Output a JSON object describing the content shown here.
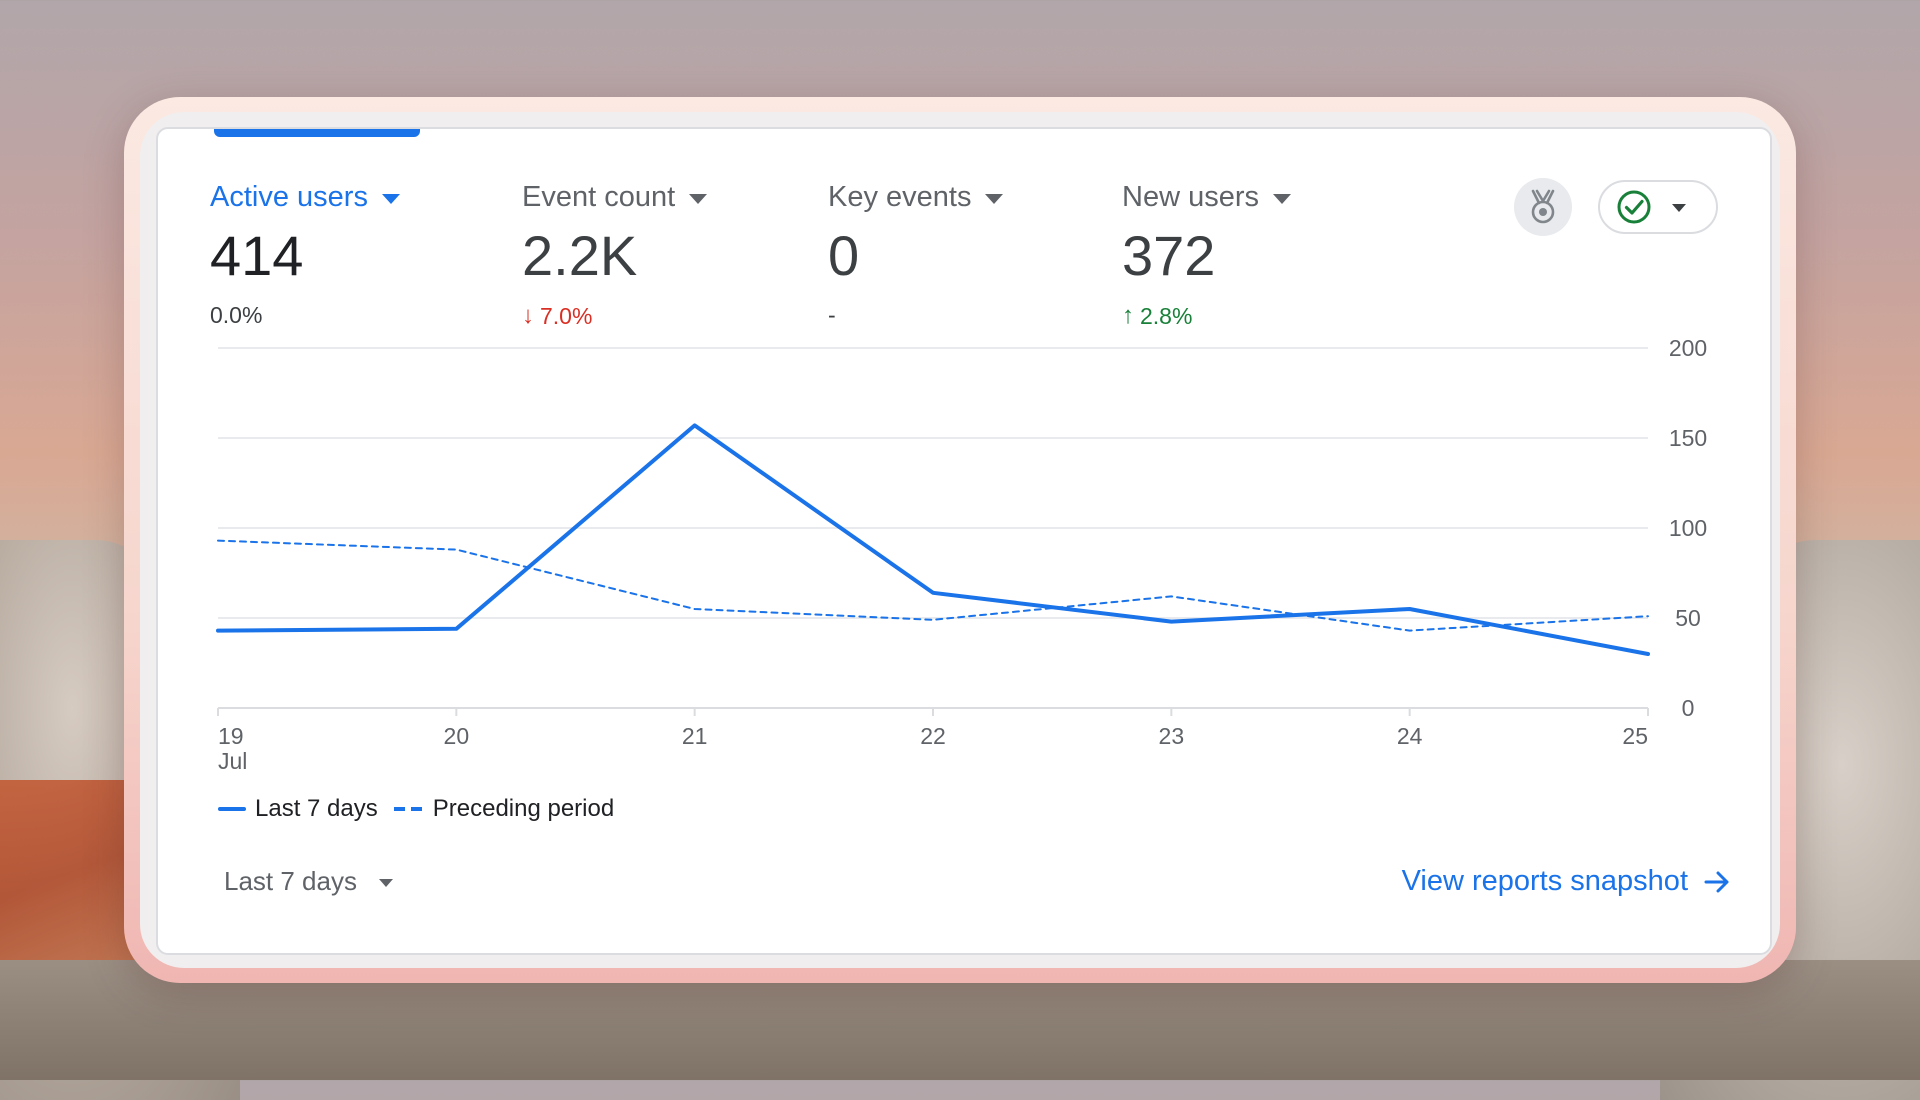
{
  "metrics": [
    {
      "label": "Active users",
      "value": "414",
      "change": "0.0%",
      "direction": "neutral",
      "active": true
    },
    {
      "label": "Event count",
      "value": "2.2K",
      "change": "7.0%",
      "direction": "down",
      "active": false
    },
    {
      "label": "Key events",
      "value": "0",
      "change": "-",
      "direction": "none",
      "active": false
    },
    {
      "label": "New users",
      "value": "372",
      "change": "2.8%",
      "direction": "up",
      "active": false
    }
  ],
  "icons": {
    "insights": "medal-icon",
    "status": "check-circle-icon",
    "dropdown": "chevron-down-icon",
    "link": "arrow-right-icon"
  },
  "colors": {
    "accent": "#1a73e8",
    "negative": "#d93025",
    "positive": "#188038",
    "status_check": "#188038"
  },
  "chart_data": {
    "type": "line",
    "x": [
      "19",
      "20",
      "21",
      "22",
      "23",
      "24",
      "25"
    ],
    "x_sublabel": "Jul",
    "ylim": [
      0,
      200
    ],
    "y_ticks": [
      0,
      50,
      100,
      150,
      200
    ],
    "y_axis_side": "right",
    "grid": true,
    "series": [
      {
        "name": "Last 7 days",
        "style": "solid",
        "values": [
          43,
          44,
          157,
          64,
          48,
          55,
          30
        ]
      },
      {
        "name": "Preceding period",
        "style": "dashed",
        "values": [
          93,
          88,
          55,
          49,
          62,
          43,
          51
        ]
      }
    ],
    "legend_position": "bottom-left"
  },
  "footer": {
    "range_label": "Last 7 days",
    "view_link": "View reports snapshot"
  }
}
